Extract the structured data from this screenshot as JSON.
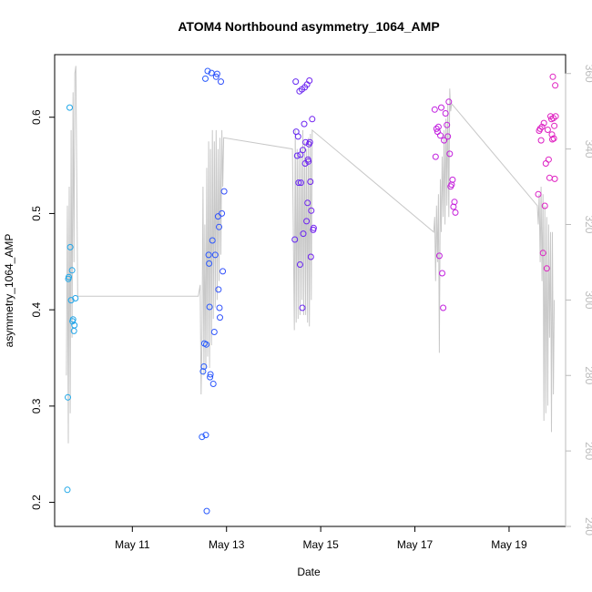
{
  "chart_data": {
    "type": "scatter",
    "title": "ATOM4 Northbound asymmetry_1064_AMP",
    "xlabel": "Date",
    "ylabel": "asymmetry_1064_AMP",
    "x_ticks": [
      "May 11",
      "May 13",
      "May 15",
      "May 17",
      "May 19"
    ],
    "y_ticks": [
      "0.2",
      "0.3",
      "0.4",
      "0.5",
      "0.6"
    ],
    "y2_ticks": [
      "240",
      "260",
      "280",
      "300",
      "320",
      "340",
      "360"
    ],
    "xlim_days": [
      9.35,
      20.2
    ],
    "ylim": [
      0.175,
      0.665
    ],
    "y2lim": [
      240,
      365
    ],
    "grid": false,
    "colors": {
      "point_gradient": [
        "#20a8e8",
        "#1e64ff",
        "#7020f0",
        "#c020e0",
        "#e020c0"
      ],
      "secondary_line": "#c8c8c8",
      "secondary_axis": "#bbbbbb"
    },
    "series": [
      {
        "values": [
          [
            9.62,
            0.213
          ],
          [
            9.63,
            0.309
          ],
          [
            9.64,
            0.432
          ],
          [
            9.65,
            0.434
          ],
          [
            9.67,
            0.61
          ],
          [
            9.68,
            0.465
          ],
          [
            9.7,
            0.41
          ],
          [
            9.72,
            0.441
          ],
          [
            9.73,
            0.388
          ],
          [
            9.74,
            0.39
          ],
          [
            9.76,
            0.378
          ],
          [
            9.77,
            0.384
          ],
          [
            9.79,
            0.412
          ],
          [
            12.48,
            0.268
          ],
          [
            12.5,
            0.336
          ],
          [
            12.52,
            0.341
          ],
          [
            12.53,
            0.365
          ],
          [
            12.55,
            0.64
          ],
          [
            12.56,
            0.27
          ],
          [
            12.57,
            0.364
          ],
          [
            12.58,
            0.191
          ],
          [
            12.6,
            0.648
          ],
          [
            12.62,
            0.457
          ],
          [
            12.63,
            0.448
          ],
          [
            12.64,
            0.403
          ],
          [
            12.65,
            0.33
          ],
          [
            12.66,
            0.333
          ],
          [
            12.68,
            0.646
          ],
          [
            12.7,
            0.472
          ],
          [
            12.72,
            0.323
          ],
          [
            12.74,
            0.377
          ],
          [
            12.76,
            0.457
          ],
          [
            12.78,
            0.642
          ],
          [
            12.8,
            0.645
          ],
          [
            12.82,
            0.497
          ],
          [
            12.83,
            0.421
          ],
          [
            12.84,
            0.486
          ],
          [
            12.85,
            0.402
          ],
          [
            12.86,
            0.392
          ],
          [
            12.88,
            0.637
          ],
          [
            12.9,
            0.5
          ],
          [
            12.92,
            0.44
          ],
          [
            12.95,
            0.523
          ],
          [
            14.45,
            0.473
          ],
          [
            14.47,
            0.637
          ],
          [
            14.48,
            0.585
          ],
          [
            14.5,
            0.56
          ],
          [
            14.52,
            0.58
          ],
          [
            14.53,
            0.532
          ],
          [
            14.55,
            0.627
          ],
          [
            14.56,
            0.447
          ],
          [
            14.57,
            0.561
          ],
          [
            14.58,
            0.532
          ],
          [
            14.6,
            0.629
          ],
          [
            14.61,
            0.402
          ],
          [
            14.62,
            0.566
          ],
          [
            14.63,
            0.479
          ],
          [
            14.65,
            0.593
          ],
          [
            14.66,
            0.631
          ],
          [
            14.67,
            0.552
          ],
          [
            14.68,
            0.574
          ],
          [
            14.7,
            0.492
          ],
          [
            14.71,
            0.634
          ],
          [
            14.72,
            0.511
          ],
          [
            14.73,
            0.556
          ],
          [
            14.74,
            0.554
          ],
          [
            14.75,
            0.572
          ],
          [
            14.76,
            0.638
          ],
          [
            14.77,
            0.574
          ],
          [
            14.78,
            0.533
          ],
          [
            14.79,
            0.455
          ],
          [
            14.8,
            0.503
          ],
          [
            14.82,
            0.598
          ],
          [
            14.84,
            0.483
          ],
          [
            14.85,
            0.485
          ],
          [
            17.42,
            0.608
          ],
          [
            17.44,
            0.559
          ],
          [
            17.46,
            0.588
          ],
          [
            17.48,
            0.585
          ],
          [
            17.5,
            0.59
          ],
          [
            17.52,
            0.456
          ],
          [
            17.54,
            0.581
          ],
          [
            17.56,
            0.61
          ],
          [
            17.58,
            0.438
          ],
          [
            17.6,
            0.402
          ],
          [
            17.62,
            0.576
          ],
          [
            17.65,
            0.604
          ],
          [
            17.68,
            0.592
          ],
          [
            17.7,
            0.58
          ],
          [
            17.72,
            0.616
          ],
          [
            17.74,
            0.562
          ],
          [
            17.76,
            0.528
          ],
          [
            17.78,
            0.53
          ],
          [
            17.8,
            0.535
          ],
          [
            17.82,
            0.507
          ],
          [
            17.84,
            0.512
          ],
          [
            17.86,
            0.501
          ],
          [
            19.62,
            0.52
          ],
          [
            19.64,
            0.586
          ],
          [
            19.66,
            0.588
          ],
          [
            19.68,
            0.576
          ],
          [
            19.7,
            0.59
          ],
          [
            19.72,
            0.459
          ],
          [
            19.74,
            0.594
          ],
          [
            19.76,
            0.508
          ],
          [
            19.78,
            0.552
          ],
          [
            19.8,
            0.443
          ],
          [
            19.82,
            0.587
          ],
          [
            19.84,
            0.556
          ],
          [
            19.86,
            0.537
          ],
          [
            19.88,
            0.601
          ],
          [
            19.9,
            0.598
          ],
          [
            19.91,
            0.582
          ],
          [
            19.92,
            0.577
          ],
          [
            19.93,
            0.642
          ],
          [
            19.94,
            0.599
          ],
          [
            19.95,
            0.578
          ],
          [
            19.96,
            0.591
          ],
          [
            19.97,
            0.536
          ],
          [
            19.98,
            0.633
          ],
          [
            19.99,
            0.601
          ]
        ]
      }
    ],
    "secondary_series": {
      "axis": "right",
      "values": [
        [
          9.6,
          280
        ],
        [
          9.62,
          325
        ],
        [
          9.64,
          262
        ],
        [
          9.66,
          330
        ],
        [
          9.68,
          270
        ],
        [
          9.7,
          345
        ],
        [
          9.72,
          290
        ],
        [
          9.74,
          355
        ],
        [
          9.76,
          310
        ],
        [
          9.78,
          360
        ],
        [
          9.8,
          362
        ],
        [
          9.84,
          301
        ],
        [
          12.4,
          301
        ],
        [
          12.44,
          304
        ],
        [
          12.46,
          275
        ],
        [
          12.48,
          290
        ],
        [
          12.5,
          330
        ],
        [
          12.52,
          280
        ],
        [
          12.54,
          320
        ],
        [
          12.56,
          282
        ],
        [
          12.58,
          335
        ],
        [
          12.6,
          285
        ],
        [
          12.62,
          342
        ],
        [
          12.64,
          282
        ],
        [
          12.66,
          340
        ],
        [
          12.68,
          288
        ],
        [
          12.7,
          345
        ],
        [
          12.72,
          295
        ],
        [
          12.74,
          342
        ],
        [
          12.76,
          298
        ],
        [
          12.78,
          345
        ],
        [
          12.8,
          300
        ],
        [
          12.82,
          340
        ],
        [
          12.84,
          305
        ],
        [
          12.86,
          343
        ],
        [
          12.88,
          312
        ],
        [
          12.9,
          345
        ],
        [
          12.92,
          330
        ],
        [
          12.94,
          343
        ],
        [
          14.4,
          340
        ],
        [
          14.44,
          292
        ],
        [
          14.46,
          345
        ],
        [
          14.48,
          294
        ],
        [
          14.5,
          340
        ],
        [
          14.52,
          295
        ],
        [
          14.54,
          338
        ],
        [
          14.56,
          296
        ],
        [
          14.58,
          340
        ],
        [
          14.6,
          300
        ],
        [
          14.62,
          345
        ],
        [
          14.64,
          296
        ],
        [
          14.66,
          342
        ],
        [
          14.68,
          296
        ],
        [
          14.7,
          340
        ],
        [
          14.72,
          294
        ],
        [
          14.74,
          343
        ],
        [
          14.76,
          293
        ],
        [
          14.78,
          344
        ],
        [
          14.8,
          300
        ],
        [
          14.82,
          345
        ],
        [
          17.4,
          318
        ],
        [
          17.42,
          322
        ],
        [
          17.44,
          305
        ],
        [
          17.46,
          325
        ],
        [
          17.48,
          310
        ],
        [
          17.5,
          328
        ],
        [
          17.52,
          286
        ],
        [
          17.54,
          332
        ],
        [
          17.56,
          318
        ],
        [
          17.58,
          338
        ],
        [
          17.6,
          322
        ],
        [
          17.62,
          345
        ],
        [
          17.64,
          320
        ],
        [
          17.66,
          348
        ],
        [
          17.68,
          325
        ],
        [
          17.7,
          352
        ],
        [
          17.72,
          322
        ],
        [
          17.74,
          356
        ],
        [
          17.76,
          350
        ],
        [
          17.78,
          352
        ],
        [
          19.6,
          325
        ],
        [
          19.62,
          320
        ],
        [
          19.64,
          328
        ],
        [
          19.66,
          310
        ],
        [
          19.68,
          330
        ],
        [
          19.7,
          305
        ],
        [
          19.72,
          328
        ],
        [
          19.74,
          268
        ],
        [
          19.76,
          325
        ],
        [
          19.78,
          270
        ],
        [
          19.8,
          322
        ],
        [
          19.82,
          272
        ],
        [
          19.84,
          320
        ],
        [
          19.86,
          290
        ],
        [
          19.88,
          318
        ],
        [
          19.9,
          265
        ],
        [
          19.92,
          318
        ],
        [
          19.94,
          275
        ],
        [
          19.96,
          300
        ]
      ]
    }
  }
}
